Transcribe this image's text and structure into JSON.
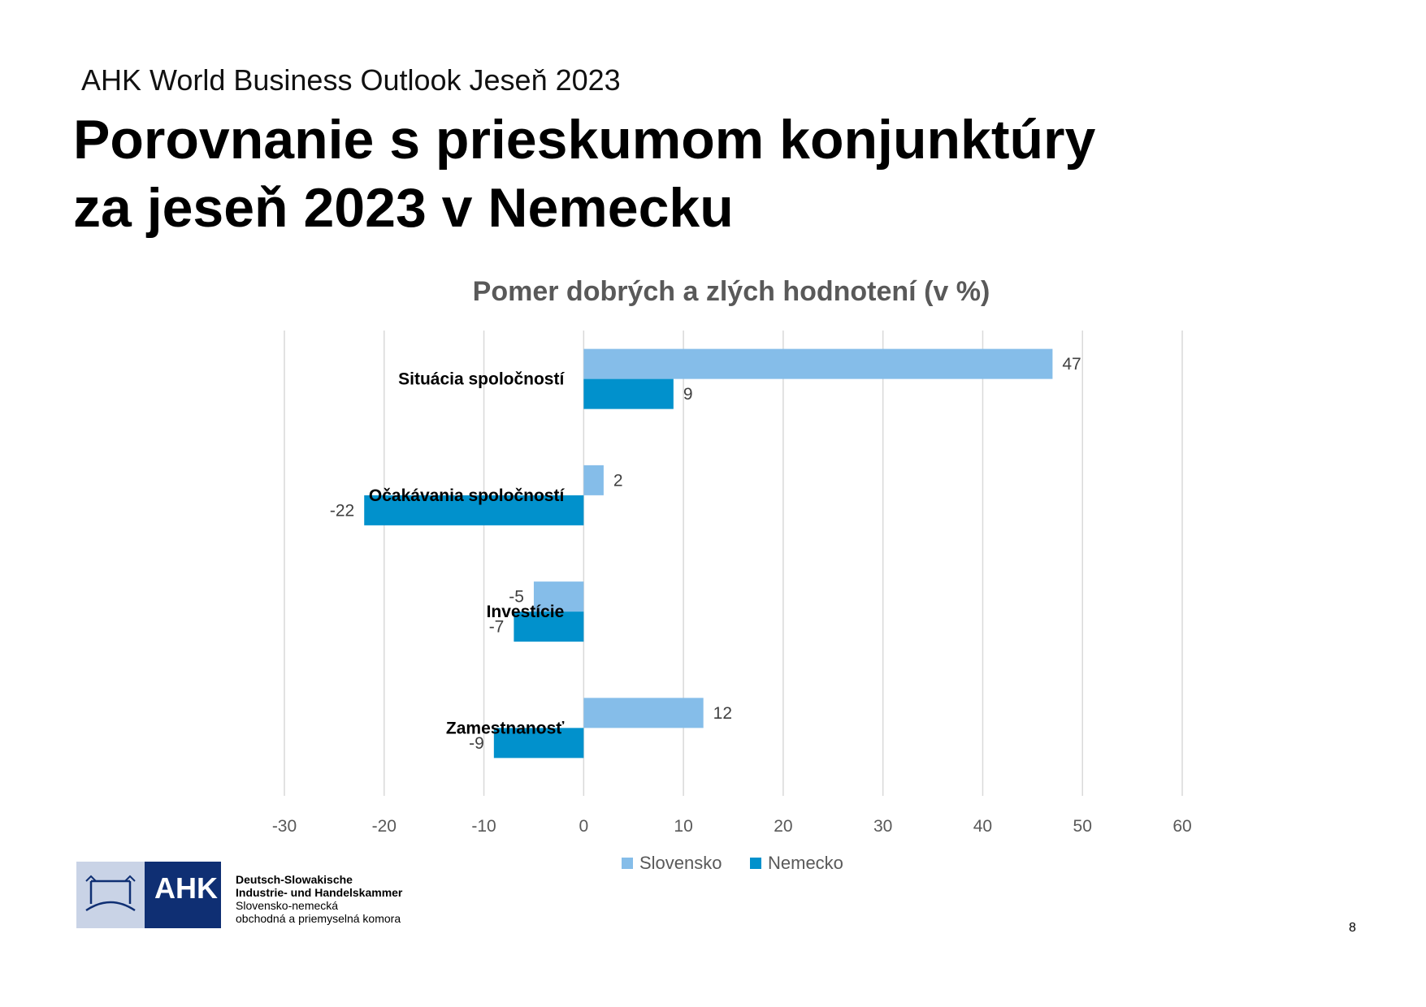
{
  "header": {
    "subtitle": "AHK World Business Outlook Jeseň 2023",
    "title_line1": "Porovnanie s prieskumom konjunktúry",
    "title_line2": "za jeseň 2023 v Nemecku"
  },
  "chart_data": {
    "type": "bar",
    "orientation": "horizontal",
    "title": "Pomer dobrých a zlých hodnotení (v %)",
    "categories": [
      "Situácia spoločností",
      "Očakávania spoločností",
      "Investície",
      "Zamestnanosť"
    ],
    "series": [
      {
        "name": "Slovensko",
        "color": "#85bde9",
        "values": [
          47,
          2,
          -5,
          12
        ]
      },
      {
        "name": "Nemecko",
        "color": "#0191cc",
        "values": [
          9,
          -22,
          -7,
          -9
        ]
      }
    ],
    "xlim": [
      -30,
      60
    ],
    "xticks": [
      "-30",
      "-20",
      "-10",
      "0",
      "10",
      "20",
      "30",
      "40",
      "50",
      "60"
    ],
    "grid": true,
    "legend_position": "bottom"
  },
  "footer": {
    "logo_mark": "AHK",
    "org_line1": "Deutsch-Slowakische",
    "org_line2": "Industrie- und Handelskammer",
    "org_line3": "Slovensko-nemecká",
    "org_line4": "obchodná a priemyselná komora",
    "page_number": "8"
  }
}
